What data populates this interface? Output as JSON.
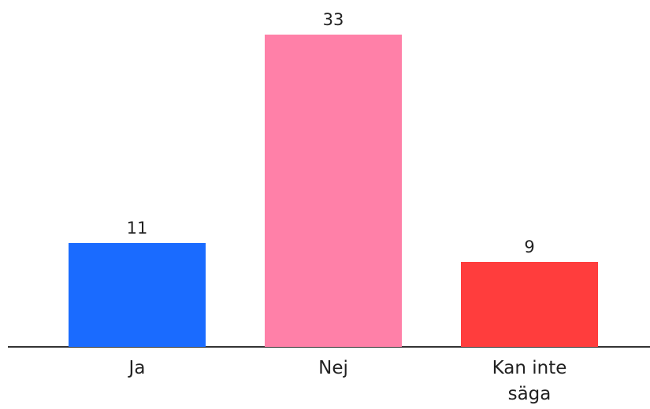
{
  "chart_data": {
    "type": "bar",
    "categories": [
      "Ja",
      "Nej",
      "Kan inte säga"
    ],
    "values": [
      11,
      33,
      9
    ],
    "colors": [
      "#1a6bff",
      "#ff80a8",
      "#ff3d3d"
    ]
  }
}
